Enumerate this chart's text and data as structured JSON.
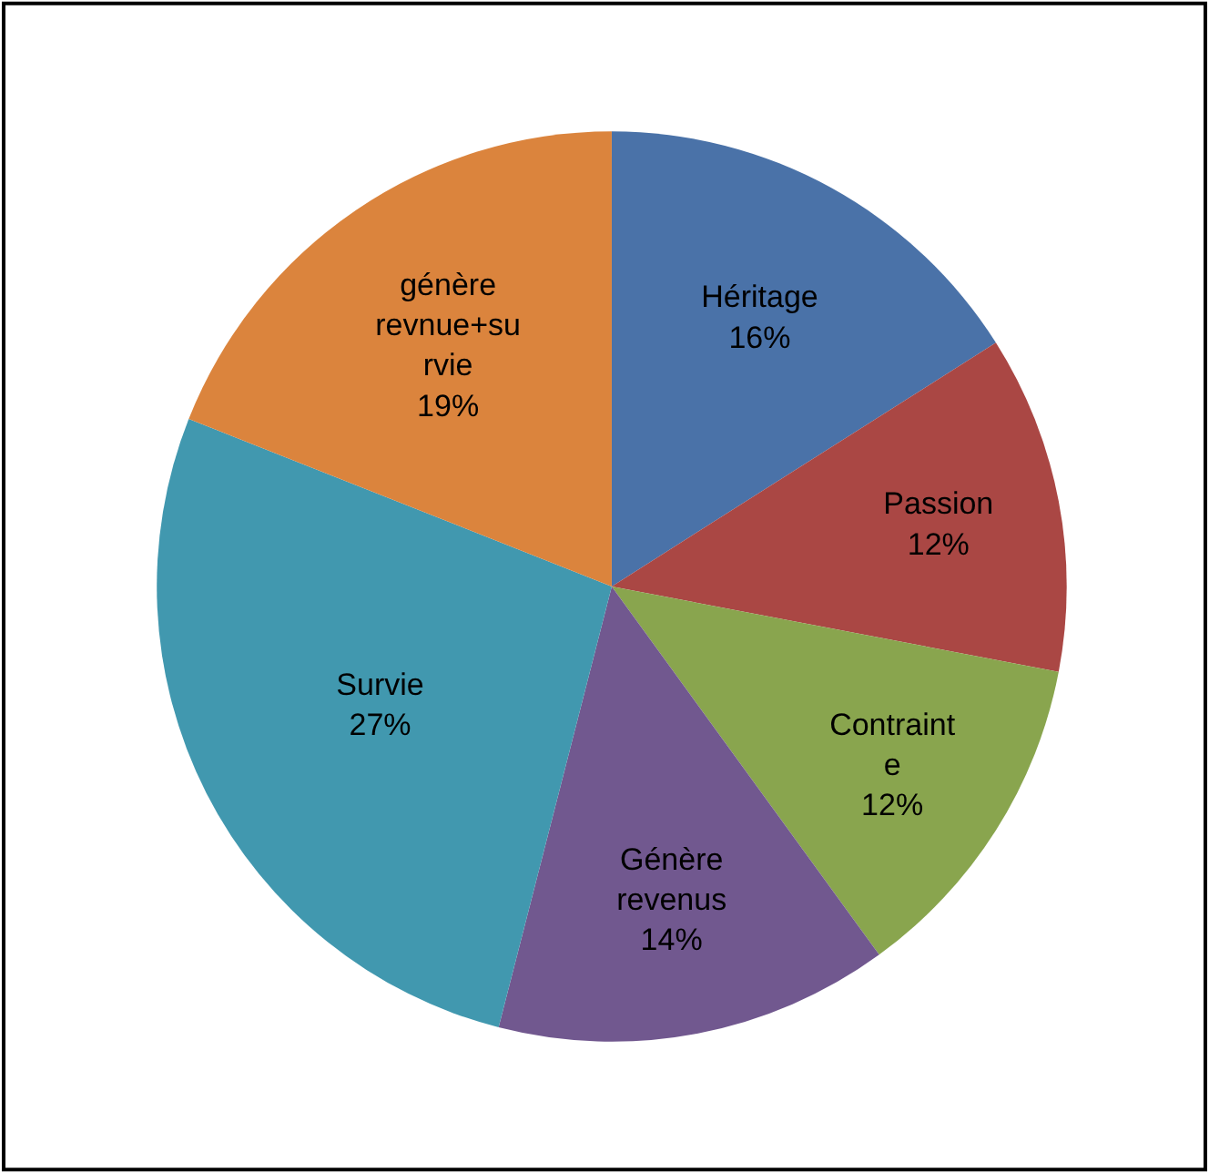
{
  "chart_data": {
    "type": "pie",
    "categories": [
      "Héritage",
      "Passion",
      "Contrainte",
      "Génère revenus",
      "Survie",
      "génère revnue+survie"
    ],
    "values": [
      16,
      12,
      12,
      14,
      27,
      19
    ],
    "value_labels": [
      "16%",
      "12%",
      "12%",
      "14%",
      "27%",
      "19%"
    ],
    "colors": [
      "#4a72a8",
      "#aa4744",
      "#89a54e",
      "#71588f",
      "#4198af",
      "#db843d"
    ],
    "legend": false
  }
}
